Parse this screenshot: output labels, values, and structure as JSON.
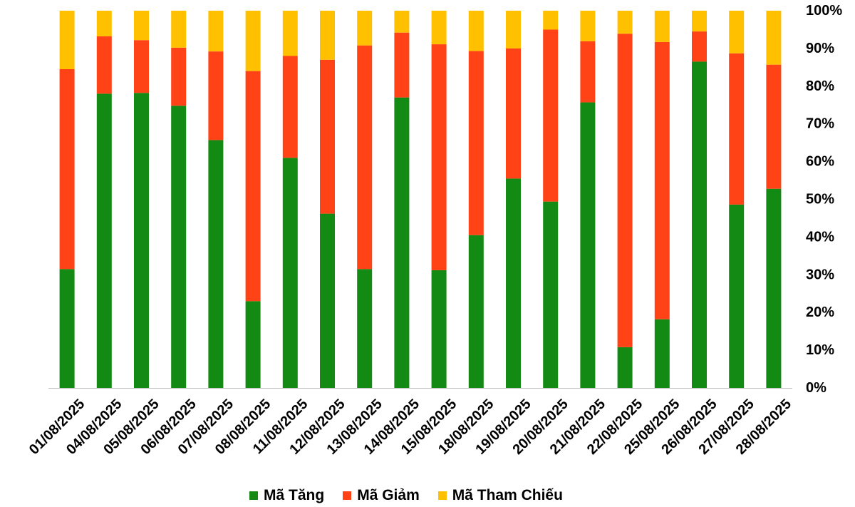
{
  "chart_data": {
    "type": "bar",
    "stacked": true,
    "percent": true,
    "categories": [
      "01/08/2025",
      "04/08/2025",
      "05/08/2025",
      "06/08/2025",
      "07/08/2025",
      "08/08/2025",
      "11/08/2025",
      "12/08/2025",
      "13/08/2025",
      "14/08/2025",
      "15/08/2025",
      "18/08/2025",
      "19/08/2025",
      "20/08/2025",
      "21/08/2025",
      "22/08/2025",
      "25/08/2025",
      "26/08/2025",
      "27/08/2025",
      "28/08/2025"
    ],
    "series": [
      {
        "name": "Mã Tăng",
        "color": "#138A13",
        "values": [
          31.5,
          78,
          78.2,
          74.8,
          65.7,
          23,
          61,
          46.2,
          31.5,
          77,
          31.2,
          40.5,
          55.5,
          49.4,
          75.7,
          10.8,
          18.2,
          86.5,
          48.6,
          52.8
        ]
      },
      {
        "name": "Mã Giảm",
        "color": "#FF4316",
        "values": [
          53,
          15.2,
          14,
          15.4,
          23.5,
          61,
          27,
          40.8,
          59.3,
          17.2,
          59.9,
          48.8,
          34.5,
          45.6,
          16.2,
          83.1,
          73.5,
          8,
          40.1,
          32.9
        ]
      },
      {
        "name": "Mã Tham Chiếu",
        "color": "#FFC000",
        "values": [
          15.5,
          6.8,
          7.8,
          9.8,
          10.8,
          16,
          12,
          13,
          9.2,
          5.8,
          8.9,
          10.7,
          10,
          5,
          8.1,
          6.1,
          8.3,
          5.5,
          11.3,
          14.3
        ]
      }
    ],
    "y_ticks": [
      "0%",
      "10%",
      "20%",
      "30%",
      "40%",
      "50%",
      "60%",
      "70%",
      "80%",
      "90%",
      "100%"
    ],
    "ylim": [
      0,
      100
    ],
    "y_axis_position": "right",
    "legend_position": "bottom",
    "title": "",
    "xlabel": "",
    "ylabel": ""
  }
}
